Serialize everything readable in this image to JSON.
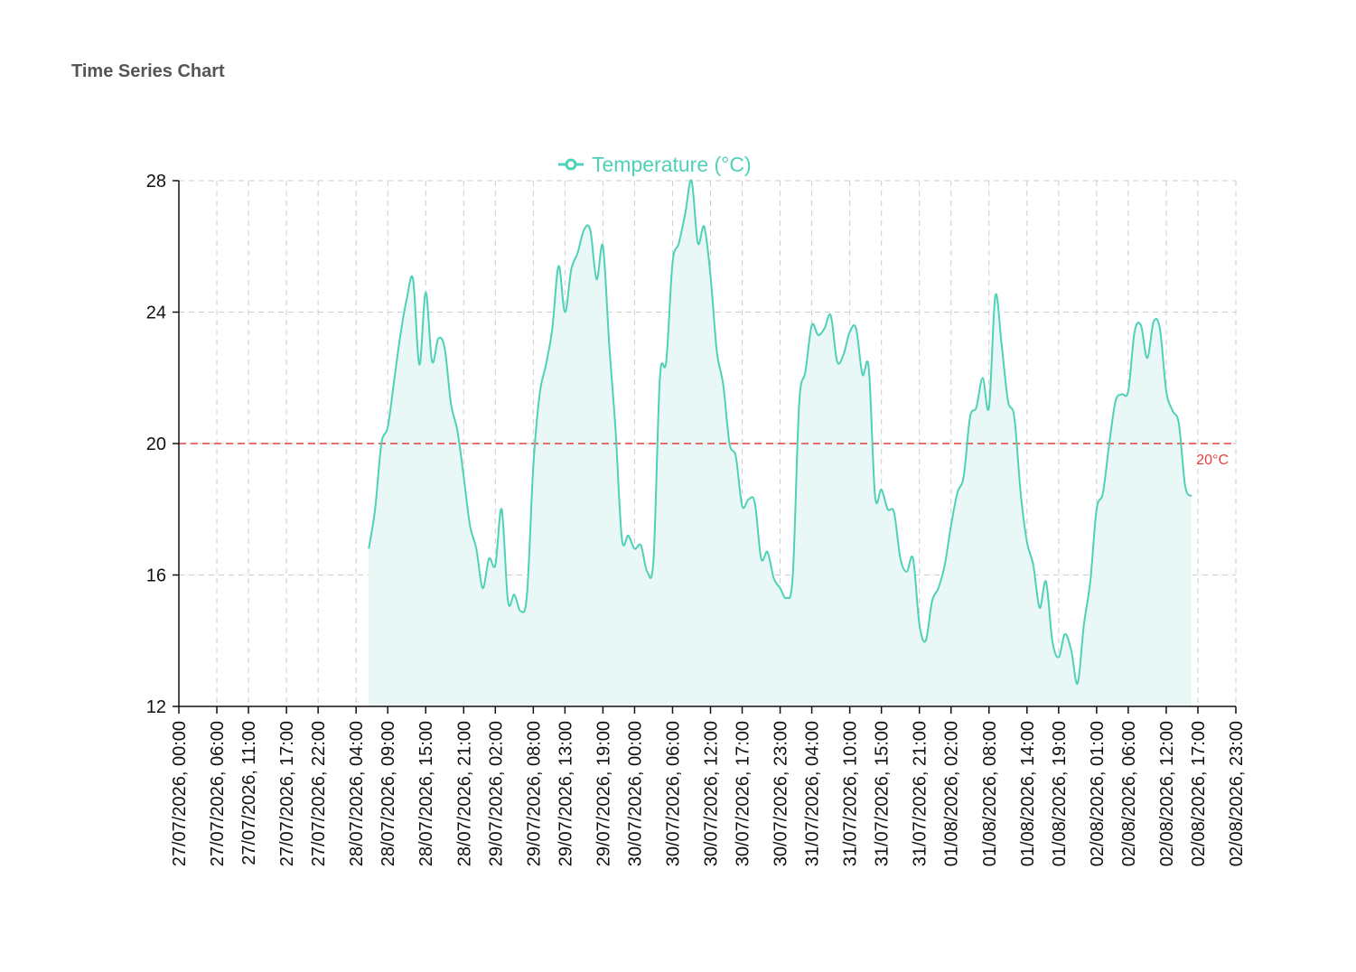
{
  "header": {
    "title": "Time Series Chart"
  },
  "colors": {
    "series": "#4fd1b8",
    "area": "#e9f8f6",
    "reference": "#e53e3e",
    "grid": "#cccccc",
    "axis": "#111111"
  },
  "chart_data": {
    "type": "area",
    "title": "",
    "xlabel": "",
    "ylabel": "",
    "ylim": [
      12,
      28
    ],
    "yticks": [
      12,
      16,
      20,
      24,
      28
    ],
    "xlim": [
      "2026-07-27T00:00",
      "2026-08-02T23:00"
    ],
    "grid": {
      "x": true,
      "y": true,
      "style": "dashed"
    },
    "legend": {
      "position": "top-center",
      "entries": [
        "Temperature (°C)"
      ]
    },
    "x_tick_labels": [
      "27/07/2026, 00:00",
      "27/07/2026, 06:00",
      "27/07/2026, 11:00",
      "27/07/2026, 17:00",
      "27/07/2026, 22:00",
      "28/07/2026, 04:00",
      "28/07/2026, 09:00",
      "28/07/2026, 15:00",
      "28/07/2026, 21:00",
      "29/07/2026, 02:00",
      "29/07/2026, 08:00",
      "29/07/2026, 13:00",
      "29/07/2026, 19:00",
      "30/07/2026, 00:00",
      "30/07/2026, 06:00",
      "30/07/2026, 12:00",
      "30/07/2026, 17:00",
      "30/07/2026, 23:00",
      "31/07/2026, 04:00",
      "31/07/2026, 10:00",
      "31/07/2026, 15:00",
      "31/07/2026, 21:00",
      "01/08/2026, 02:00",
      "01/08/2026, 08:00",
      "01/08/2026, 14:00",
      "01/08/2026, 19:00",
      "02/08/2026, 01:00",
      "02/08/2026, 06:00",
      "02/08/2026, 12:00",
      "02/08/2026, 17:00",
      "02/08/2026, 23:00"
    ],
    "reference_lines": [
      {
        "y": 20,
        "label": "20°C"
      }
    ],
    "series": [
      {
        "name": "Temperature (°C)",
        "points": [
          [
            "2026-07-28T06:00",
            16.8
          ],
          [
            "2026-07-28T07:00",
            18.0
          ],
          [
            "2026-07-28T08:00",
            20.0
          ],
          [
            "2026-07-28T09:00",
            20.5
          ],
          [
            "2026-07-28T10:00",
            21.9
          ],
          [
            "2026-07-28T11:00",
            23.3
          ],
          [
            "2026-07-28T12:00",
            24.4
          ],
          [
            "2026-07-28T13:00",
            25.0
          ],
          [
            "2026-07-28T14:00",
            22.4
          ],
          [
            "2026-07-28T15:00",
            24.6
          ],
          [
            "2026-07-28T16:00",
            22.5
          ],
          [
            "2026-07-28T17:00",
            23.2
          ],
          [
            "2026-07-28T18:00",
            22.9
          ],
          [
            "2026-07-28T19:00",
            21.2
          ],
          [
            "2026-07-28T20:00",
            20.4
          ],
          [
            "2026-07-28T21:00",
            19.0
          ],
          [
            "2026-07-28T22:00",
            17.5
          ],
          [
            "2026-07-28T23:00",
            16.8
          ],
          [
            "2026-07-29T00:00",
            15.6
          ],
          [
            "2026-07-29T01:00",
            16.5
          ],
          [
            "2026-07-29T02:00",
            16.3
          ],
          [
            "2026-07-29T03:00",
            18.0
          ],
          [
            "2026-07-29T04:00",
            15.2
          ],
          [
            "2026-07-29T05:00",
            15.4
          ],
          [
            "2026-07-29T06:00",
            14.9
          ],
          [
            "2026-07-29T07:00",
            15.4
          ],
          [
            "2026-07-29T08:00",
            19.3
          ],
          [
            "2026-07-29T09:00",
            21.5
          ],
          [
            "2026-07-29T10:00",
            22.4
          ],
          [
            "2026-07-29T11:00",
            23.5
          ],
          [
            "2026-07-29T12:00",
            25.4
          ],
          [
            "2026-07-29T13:00",
            24.0
          ],
          [
            "2026-07-29T14:00",
            25.3
          ],
          [
            "2026-07-29T15:00",
            25.8
          ],
          [
            "2026-07-29T16:00",
            26.5
          ],
          [
            "2026-07-29T17:00",
            26.5
          ],
          [
            "2026-07-29T18:00",
            25.0
          ],
          [
            "2026-07-29T19:00",
            26.0
          ],
          [
            "2026-07-29T20:00",
            23.0
          ],
          [
            "2026-07-29T21:00",
            20.4
          ],
          [
            "2026-07-29T22:00",
            17.1
          ],
          [
            "2026-07-29T23:00",
            17.2
          ],
          [
            "2026-07-30T00:00",
            16.8
          ],
          [
            "2026-07-30T01:00",
            16.9
          ],
          [
            "2026-07-30T02:00",
            16.1
          ],
          [
            "2026-07-30T03:00",
            16.5
          ],
          [
            "2026-07-30T04:00",
            22.0
          ],
          [
            "2026-07-30T05:00",
            22.5
          ],
          [
            "2026-07-30T06:00",
            25.5
          ],
          [
            "2026-07-30T07:00",
            26.1
          ],
          [
            "2026-07-30T08:00",
            27.0
          ],
          [
            "2026-07-30T09:00",
            28.0
          ],
          [
            "2026-07-30T10:00",
            26.1
          ],
          [
            "2026-07-30T11:00",
            26.6
          ],
          [
            "2026-07-30T12:00",
            25.1
          ],
          [
            "2026-07-30T13:00",
            22.8
          ],
          [
            "2026-07-30T14:00",
            21.8
          ],
          [
            "2026-07-30T15:00",
            20.0
          ],
          [
            "2026-07-30T16:00",
            19.6
          ],
          [
            "2026-07-30T17:00",
            18.1
          ],
          [
            "2026-07-30T18:00",
            18.3
          ],
          [
            "2026-07-30T19:00",
            18.2
          ],
          [
            "2026-07-30T20:00",
            16.5
          ],
          [
            "2026-07-30T21:00",
            16.7
          ],
          [
            "2026-07-30T22:00",
            15.9
          ],
          [
            "2026-07-30T23:00",
            15.6
          ],
          [
            "2026-07-31T00:00",
            15.3
          ],
          [
            "2026-07-31T01:00",
            16.0
          ],
          [
            "2026-07-31T02:00",
            21.2
          ],
          [
            "2026-07-31T03:00",
            22.2
          ],
          [
            "2026-07-31T04:00",
            23.6
          ],
          [
            "2026-07-31T05:00",
            23.3
          ],
          [
            "2026-07-31T06:00",
            23.5
          ],
          [
            "2026-07-31T07:00",
            23.9
          ],
          [
            "2026-07-31T08:00",
            22.5
          ],
          [
            "2026-07-31T09:00",
            22.7
          ],
          [
            "2026-07-31T10:00",
            23.4
          ],
          [
            "2026-07-31T11:00",
            23.5
          ],
          [
            "2026-07-31T12:00",
            22.1
          ],
          [
            "2026-07-31T13:00",
            22.3
          ],
          [
            "2026-07-31T14:00",
            18.4
          ],
          [
            "2026-07-31T15:00",
            18.6
          ],
          [
            "2026-07-31T16:00",
            18.0
          ],
          [
            "2026-07-31T17:00",
            17.9
          ],
          [
            "2026-07-31T18:00",
            16.5
          ],
          [
            "2026-07-31T19:00",
            16.1
          ],
          [
            "2026-07-31T20:00",
            16.5
          ],
          [
            "2026-07-31T21:00",
            14.5
          ],
          [
            "2026-07-31T22:00",
            14.0
          ],
          [
            "2026-07-31T23:00",
            15.2
          ],
          [
            "2026-08-01T00:00",
            15.6
          ],
          [
            "2026-08-01T01:00",
            16.3
          ],
          [
            "2026-08-01T02:00",
            17.5
          ],
          [
            "2026-08-01T03:00",
            18.5
          ],
          [
            "2026-08-01T04:00",
            19.0
          ],
          [
            "2026-08-01T05:00",
            20.8
          ],
          [
            "2026-08-01T06:00",
            21.1
          ],
          [
            "2026-08-01T07:00",
            22.0
          ],
          [
            "2026-08-01T08:00",
            21.1
          ],
          [
            "2026-08-01T09:00",
            24.5
          ],
          [
            "2026-08-01T10:00",
            23.0
          ],
          [
            "2026-08-01T11:00",
            21.3
          ],
          [
            "2026-08-01T12:00",
            20.8
          ],
          [
            "2026-08-01T13:00",
            18.5
          ],
          [
            "2026-08-01T14:00",
            17.0
          ],
          [
            "2026-08-01T15:00",
            16.3
          ],
          [
            "2026-08-01T16:00",
            15.0
          ],
          [
            "2026-08-01T17:00",
            15.8
          ],
          [
            "2026-08-01T18:00",
            14.0
          ],
          [
            "2026-08-01T19:00",
            13.5
          ],
          [
            "2026-08-01T20:00",
            14.2
          ],
          [
            "2026-08-01T21:00",
            13.7
          ],
          [
            "2026-08-01T22:00",
            12.7
          ],
          [
            "2026-08-01T23:00",
            14.5
          ],
          [
            "2026-08-02T00:00",
            15.8
          ],
          [
            "2026-08-02T01:00",
            18.0
          ],
          [
            "2026-08-02T02:00",
            18.5
          ],
          [
            "2026-08-02T03:00",
            20.0
          ],
          [
            "2026-08-02T04:00",
            21.3
          ],
          [
            "2026-08-02T05:00",
            21.5
          ],
          [
            "2026-08-02T06:00",
            21.6
          ],
          [
            "2026-08-02T07:00",
            23.4
          ],
          [
            "2026-08-02T08:00",
            23.6
          ],
          [
            "2026-08-02T09:00",
            22.6
          ],
          [
            "2026-08-02T10:00",
            23.7
          ],
          [
            "2026-08-02T11:00",
            23.5
          ],
          [
            "2026-08-02T12:00",
            21.6
          ],
          [
            "2026-08-02T13:00",
            21.0
          ],
          [
            "2026-08-02T14:00",
            20.6
          ],
          [
            "2026-08-02T15:00",
            18.7
          ],
          [
            "2026-08-02T16:00",
            18.4
          ]
        ]
      }
    ]
  }
}
